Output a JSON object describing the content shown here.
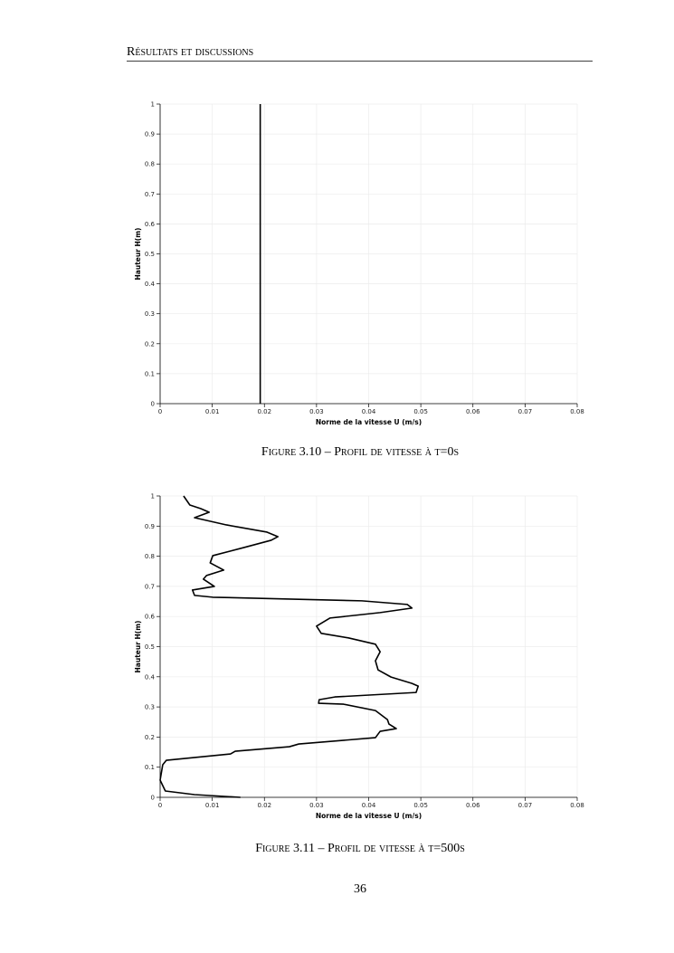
{
  "header": {
    "title": "Résultats et discussions"
  },
  "chart_data": [
    {
      "type": "line",
      "caption": "Figure 3.10 – Profil de vitesse à t=0s",
      "x_label": "Norme de la vitesse U (m/s)",
      "y_label": "Hauteur H(m)",
      "x": [
        0.0192,
        0.0192
      ],
      "values": [
        0,
        1
      ],
      "color": "#000000",
      "xlim": [
        0,
        0.08
      ],
      "xticks": [
        0,
        0.01,
        0.02,
        0.03,
        0.04,
        0.05,
        0.06,
        0.07,
        0.08
      ],
      "ylim": [
        0,
        1
      ],
      "yticks": [
        0,
        0.1,
        0.2,
        0.3,
        0.4,
        0.5,
        0.6,
        0.7,
        0.8,
        0.9,
        1
      ],
      "grid": true
    },
    {
      "type": "line",
      "caption": "Figure 3.11 – Profil de vitesse à t=500s",
      "x_label": "Norme de la vitesse U (m/s)",
      "y_label": "Hauteur H(m)",
      "x": [
        0.0154,
        0.0066,
        0.001,
        0.0,
        0.0005,
        0.0012,
        0.0135,
        0.0144,
        0.0248,
        0.0266,
        0.0413,
        0.0422,
        0.0453,
        0.0439,
        0.0436,
        0.0413,
        0.0352,
        0.0304,
        0.0305,
        0.0335,
        0.0491,
        0.0495,
        0.0483,
        0.0443,
        0.0418,
        0.0413,
        0.0422,
        0.0413,
        0.0361,
        0.0309,
        0.03,
        0.0326,
        0.0422,
        0.0483,
        0.0474,
        0.0387,
        0.0248,
        0.0101,
        0.0066,
        0.0062,
        0.0104,
        0.0083,
        0.0089,
        0.0122,
        0.0096,
        0.0101,
        0.0161,
        0.0213,
        0.0226,
        0.0205,
        0.0127,
        0.0066,
        0.0094,
        0.0078,
        0.0057,
        0.0045
      ],
      "values": [
        0,
        0.009,
        0.021,
        0.057,
        0.108,
        0.123,
        0.144,
        0.153,
        0.168,
        0.177,
        0.198,
        0.219,
        0.228,
        0.243,
        0.258,
        0.288,
        0.309,
        0.312,
        0.324,
        0.333,
        0.348,
        0.369,
        0.378,
        0.399,
        0.423,
        0.453,
        0.483,
        0.508,
        0.529,
        0.544,
        0.568,
        0.595,
        0.613,
        0.628,
        0.64,
        0.652,
        0.658,
        0.664,
        0.67,
        0.688,
        0.7,
        0.724,
        0.736,
        0.754,
        0.778,
        0.802,
        0.829,
        0.853,
        0.865,
        0.88,
        0.904,
        0.928,
        0.946,
        0.958,
        0.97,
        1.0
      ],
      "color": "#000000",
      "xlim": [
        0,
        0.08
      ],
      "xticks": [
        0,
        0.01,
        0.02,
        0.03,
        0.04,
        0.05,
        0.06,
        0.07,
        0.08
      ],
      "ylim": [
        0,
        1
      ],
      "yticks": [
        0,
        0.1,
        0.2,
        0.3,
        0.4,
        0.5,
        0.6,
        0.7,
        0.8,
        0.9,
        1
      ],
      "grid": true
    }
  ],
  "page_number": "36"
}
